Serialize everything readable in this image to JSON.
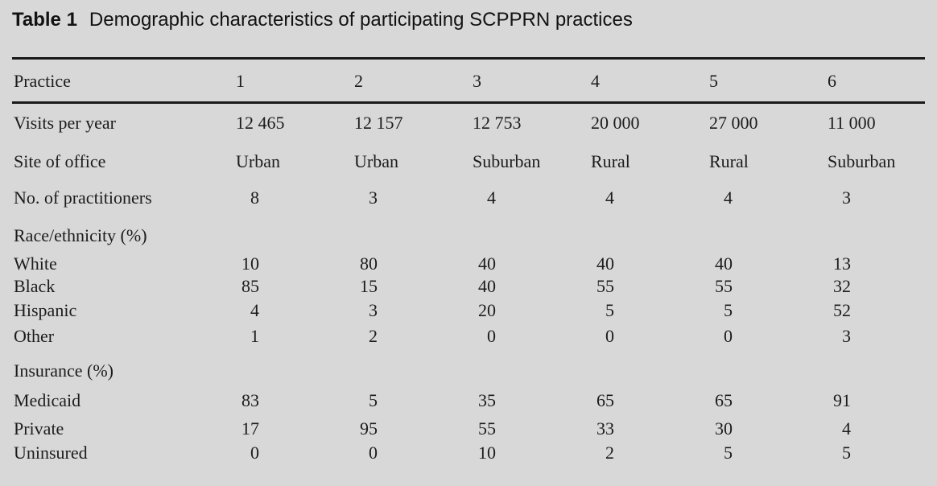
{
  "page": {
    "background_color": "#d8d8d8",
    "text_color": "#1c1c1c",
    "rule_color": "#1a1a1a"
  },
  "title": {
    "label": "Table 1",
    "text": "Demographic characteristics of participating SCPPRN practices"
  },
  "table": {
    "header": {
      "label": "Practice",
      "columns": [
        "1",
        "2",
        "3",
        "4",
        "5",
        "6"
      ]
    },
    "rows": [
      {
        "label": "Visits per year",
        "cells": [
          "12 465",
          "12 157",
          "12 753",
          "20 000",
          "27 000",
          "11 000"
        ]
      },
      {
        "label": "Site of office",
        "cells": [
          "Urban",
          "Urban",
          "Suburban",
          "Rural",
          "Rural",
          "Suburban"
        ]
      },
      {
        "label": "No. of practitioners",
        "cells": [
          "8",
          "3",
          "4",
          "4",
          "4",
          "3"
        ]
      },
      {
        "label": "Race/ethnicity (%)",
        "cells": []
      },
      {
        "label": "White",
        "cells": [
          "10",
          "80",
          "40",
          "40",
          "40",
          "13"
        ]
      },
      {
        "label": "Black",
        "cells": [
          "85",
          "15",
          "40",
          "55",
          "55",
          "32"
        ]
      },
      {
        "label": "Hispanic",
        "cells": [
          "4",
          "3",
          "20",
          "5",
          "5",
          "52"
        ]
      },
      {
        "label": "Other",
        "cells": [
          "1",
          "2",
          "0",
          "0",
          "0",
          "3"
        ]
      },
      {
        "label": "Insurance (%)",
        "cells": []
      },
      {
        "label": "Medicaid",
        "cells": [
          "83",
          "5",
          "35",
          "65",
          "65",
          "91"
        ]
      },
      {
        "label": "Private",
        "cells": [
          "17",
          "95",
          "55",
          "33",
          "30",
          "4"
        ]
      },
      {
        "label": "Uninsured",
        "cells": [
          "0",
          "0",
          "10",
          "2",
          "5",
          "5"
        ]
      }
    ]
  }
}
